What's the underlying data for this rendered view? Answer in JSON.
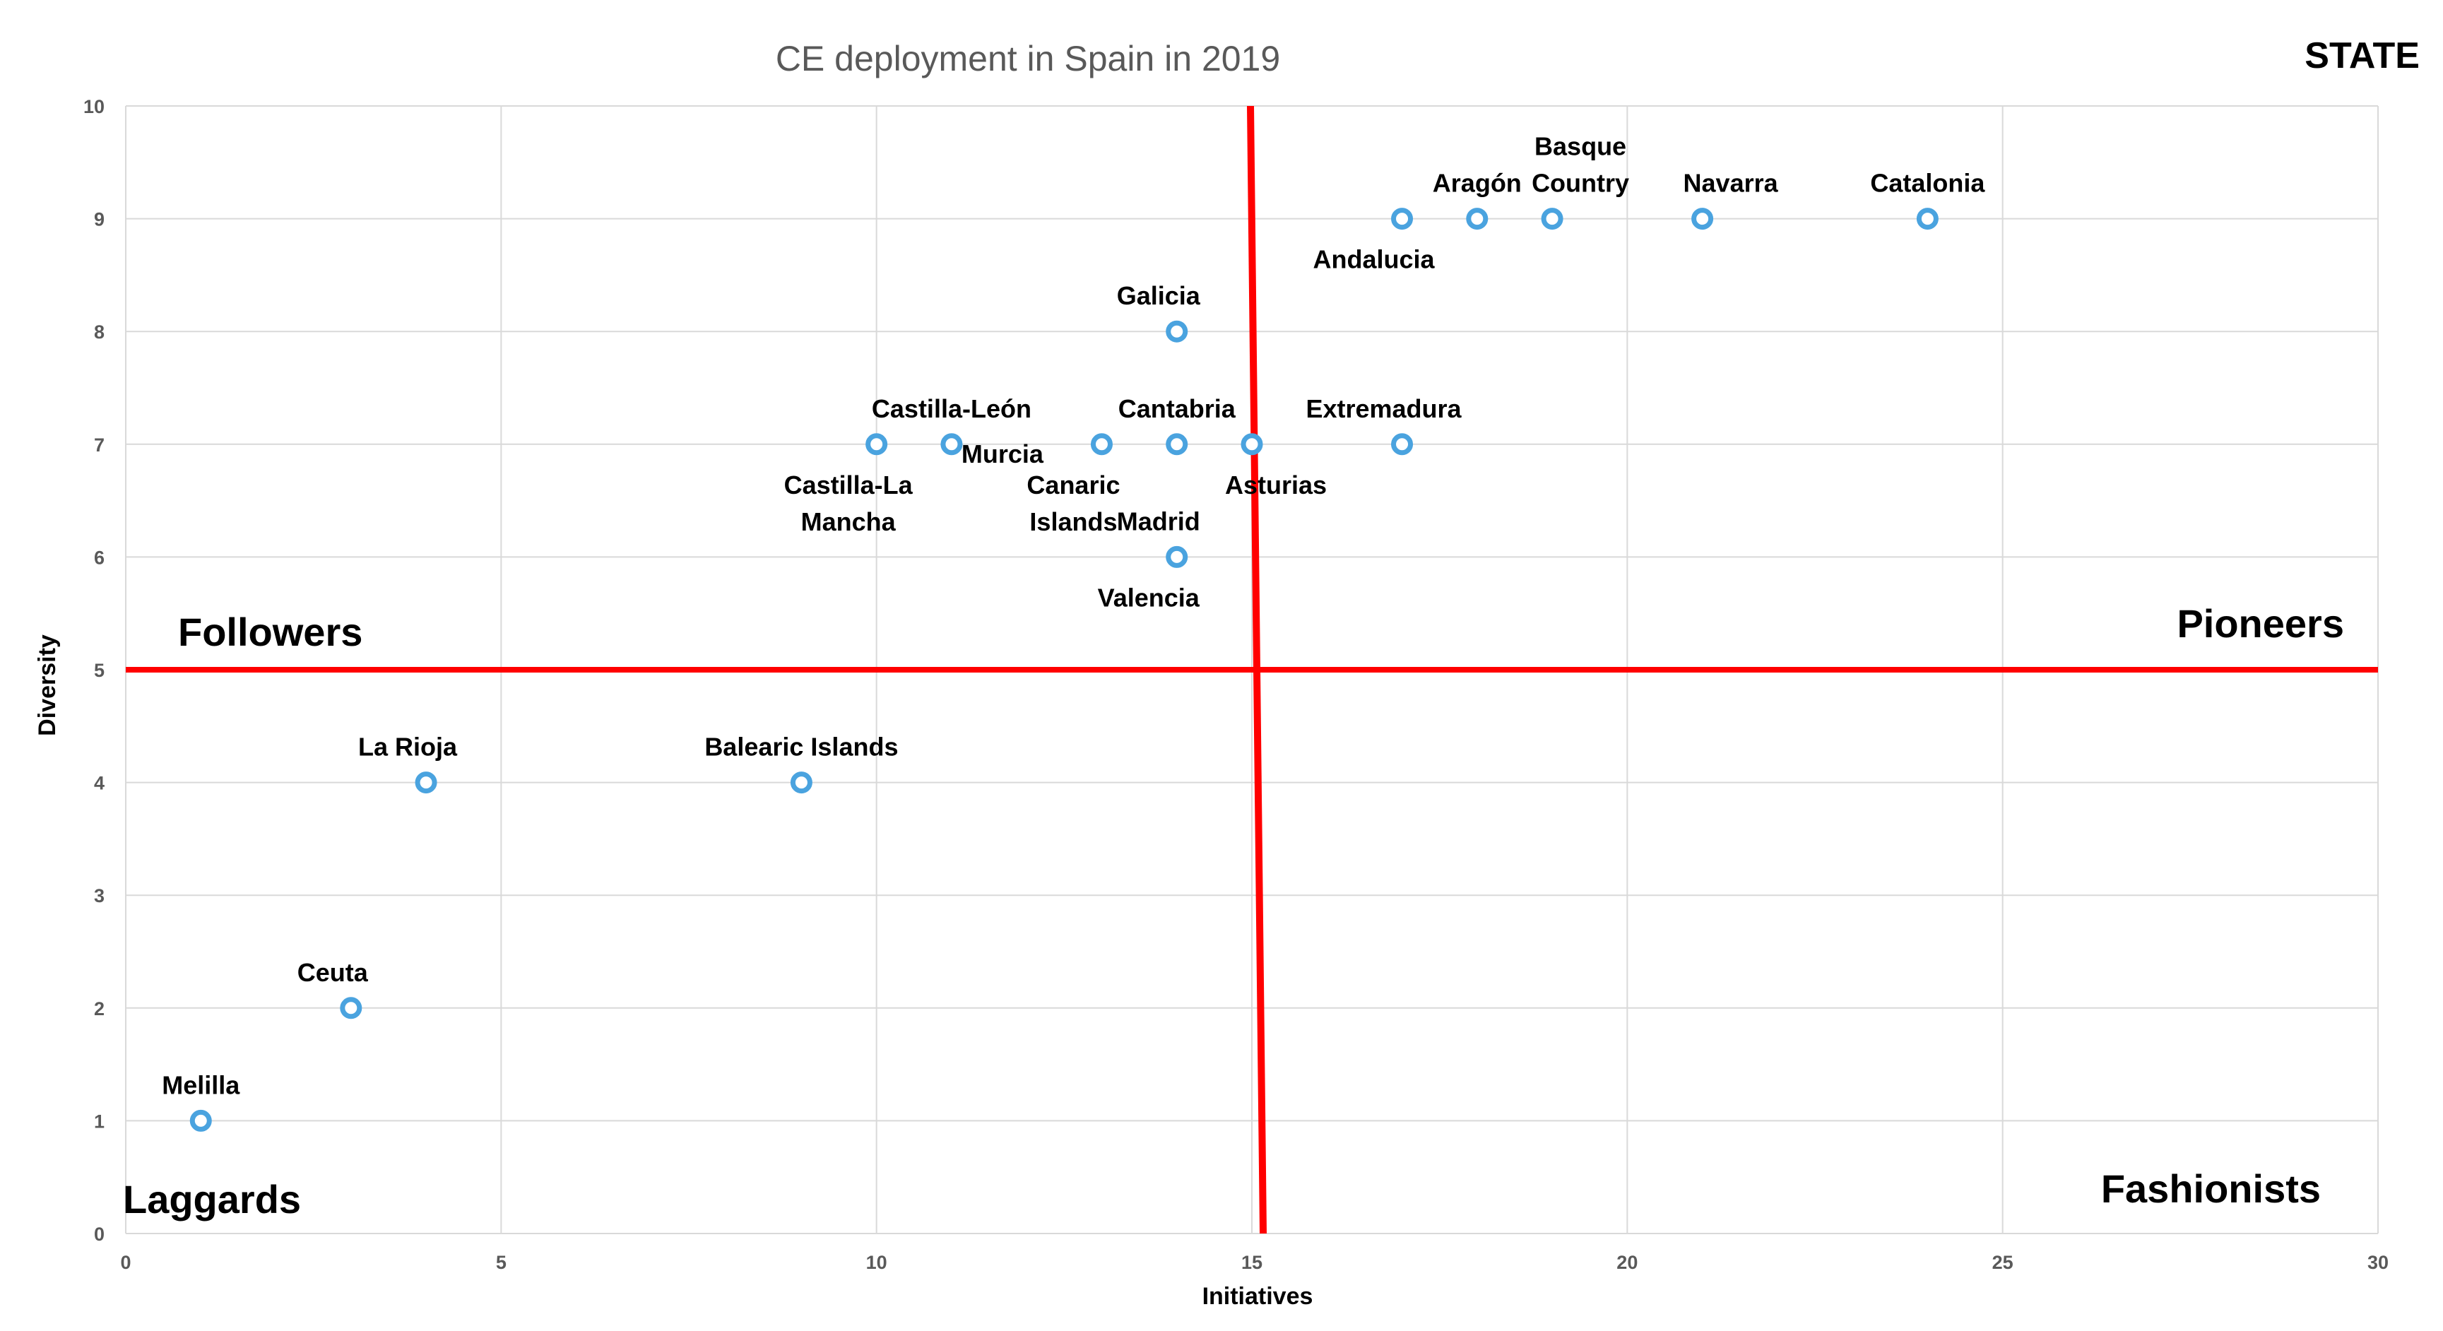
{
  "chart_data": {
    "type": "scatter",
    "title": "CE deployment  in Spain in 2019",
    "corner_label": "STATE",
    "xlabel": "Initiatives",
    "ylabel": "Diversity",
    "xlim": [
      0,
      30
    ],
    "ylim": [
      0,
      10
    ],
    "x_ticks": [
      0,
      5,
      10,
      15,
      20,
      25,
      30
    ],
    "y_ticks": [
      0,
      1,
      2,
      3,
      4,
      5,
      6,
      7,
      8,
      9,
      10
    ],
    "grid": true,
    "marker_color": "#4aa3df",
    "divider_color": "#ff0000",
    "dividers": {
      "x": 15,
      "y": 5
    },
    "quadrant_labels": {
      "top_left": "Followers",
      "top_right": "Pioneers",
      "bottom_left": "Laggards",
      "bottom_right": "Fashionists"
    },
    "points": [
      {
        "x": 17,
        "y": 9,
        "label": [
          "Andalucia"
        ],
        "label_pos": "below-left"
      },
      {
        "x": 18,
        "y": 9,
        "label": [
          "Aragón"
        ],
        "label_pos": "above"
      },
      {
        "x": 19,
        "y": 9,
        "label": [
          "Basque",
          "Country"
        ],
        "label_pos": "above-right"
      },
      {
        "x": 21,
        "y": 9,
        "label": [
          "Navarra"
        ],
        "label_pos": "above-right"
      },
      {
        "x": 24,
        "y": 9,
        "label": [
          "Catalonia"
        ],
        "label_pos": "above"
      },
      {
        "x": 14,
        "y": 8,
        "label": [
          "Galicia"
        ],
        "label_pos": "above-left"
      },
      {
        "x": 10,
        "y": 7,
        "label": [
          "Castilla-La",
          "Mancha"
        ],
        "label_pos": "below-left"
      },
      {
        "x": 11,
        "y": 7,
        "label": [
          "Castilla-León"
        ],
        "label_pos": "above"
      },
      {
        "x": 11,
        "y": 7,
        "label": [
          "Murcia"
        ],
        "label_pos": "right"
      },
      {
        "x": 13,
        "y": 7,
        "label": [
          "Canaric",
          "Islands"
        ],
        "label_pos": "below-left"
      },
      {
        "x": 14,
        "y": 7,
        "label": [
          "Cantabria"
        ],
        "label_pos": "above"
      },
      {
        "x": 15,
        "y": 7,
        "label": [
          "Asturias"
        ],
        "label_pos": "below-right"
      },
      {
        "x": 17,
        "y": 7,
        "label": [
          "Extremadura"
        ],
        "label_pos": "above-left"
      },
      {
        "x": 14,
        "y": 6,
        "label": [
          "Madrid"
        ],
        "label_pos": "above-left"
      },
      {
        "x": 14,
        "y": 6,
        "label": [
          "Valencia"
        ],
        "label_pos": "below-left"
      },
      {
        "x": 4,
        "y": 4,
        "label": [
          "La Rioja"
        ],
        "label_pos": "above-left"
      },
      {
        "x": 9,
        "y": 4,
        "label": [
          "Balearic Islands"
        ],
        "label_pos": "above"
      },
      {
        "x": 3,
        "y": 2,
        "label": [
          "Ceuta"
        ],
        "label_pos": "above-left"
      },
      {
        "x": 1,
        "y": 1,
        "label": [
          "Melilla"
        ],
        "label_pos": "above"
      }
    ]
  }
}
